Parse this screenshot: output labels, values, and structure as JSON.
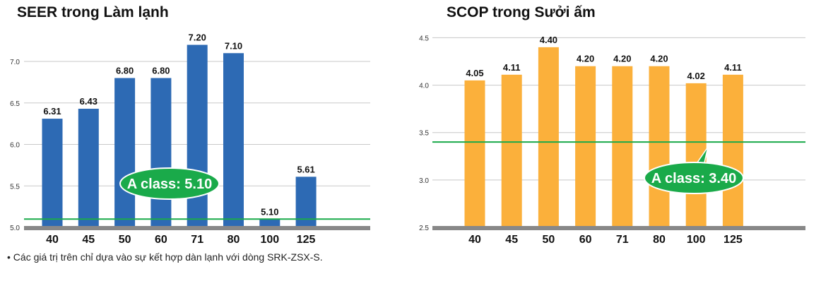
{
  "chart_data": [
    {
      "type": "bar",
      "title": "SEER trong Làm lạnh",
      "categories": [
        "40",
        "45",
        "50",
        "60",
        "71",
        "80",
        "100",
        "125"
      ],
      "values": [
        6.31,
        6.43,
        6.8,
        6.8,
        7.2,
        7.1,
        5.1,
        5.61
      ],
      "value_labels": [
        "6.31",
        "6.43",
        "6.80",
        "6.80",
        "7.20",
        "7.10",
        "5.10",
        "5.61"
      ],
      "ylim": [
        5.0,
        7.4
      ],
      "yticks": [
        5.0,
        5.5,
        6.0,
        6.5,
        7.0
      ],
      "ytick_labels": [
        "5.0",
        "5.5",
        "6.0",
        "6.5",
        "7.0"
      ],
      "grid": true,
      "bar_color": "#2d6ab4",
      "reference_line": {
        "value": 5.1,
        "label": "A class: 5.10",
        "color": "#1aaa4a"
      }
    },
    {
      "type": "bar",
      "title": "SCOP trong Sưởi ấm",
      "categories": [
        "40",
        "45",
        "50",
        "60",
        "71",
        "80",
        "100",
        "125"
      ],
      "values": [
        4.05,
        4.11,
        4.4,
        4.2,
        4.2,
        4.2,
        4.02,
        4.11
      ],
      "value_labels": [
        "4.05",
        "4.11",
        "4.40",
        "4.20",
        "4.20",
        "4.20",
        "4.02",
        "4.11"
      ],
      "ylim": [
        2.5,
        4.6
      ],
      "yticks": [
        2.5,
        3.0,
        3.5,
        4.0,
        4.5
      ],
      "ytick_labels": [
        "2.5",
        "3.0",
        "3.5",
        "4.0",
        "4.5"
      ],
      "grid": true,
      "bar_color": "#fbb03b",
      "reference_line": {
        "value": 3.4,
        "label": "A class: 3.40",
        "color": "#1aaa4a"
      }
    }
  ],
  "footnote": "• Các giá trị trên chỉ dựa vào sự kết hợp dàn lạnh với dòng SRK-ZSX-S."
}
